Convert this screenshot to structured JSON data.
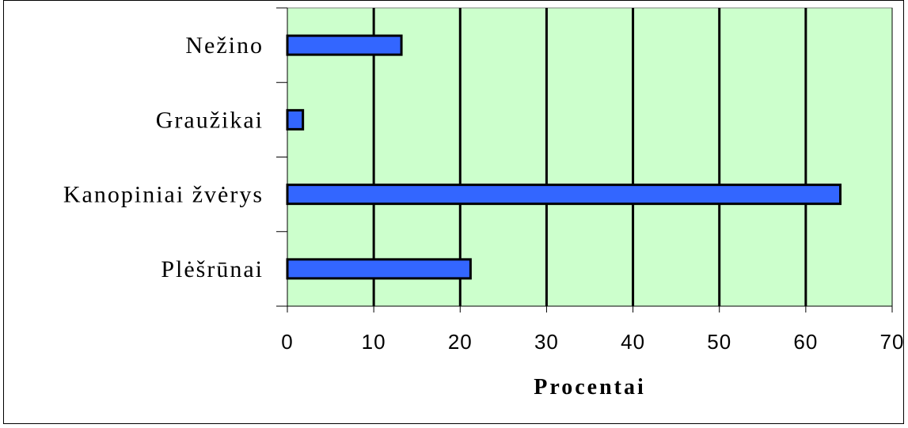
{
  "chart_data": {
    "type": "bar",
    "orientation": "horizontal",
    "categories": [
      "Nežino",
      "Graužikai",
      "Kanopiniai žvėrys",
      "Plėšrūnai"
    ],
    "values": [
      13.2,
      1.8,
      64.0,
      21.2
    ],
    "title": "",
    "xlabel": "Procentai",
    "ylabel": "",
    "xlim": [
      0,
      70
    ],
    "xticks": [
      "0",
      "10",
      "20",
      "30",
      "40",
      "50",
      "60",
      "70"
    ],
    "grid": "vertical",
    "legend": "none",
    "colors": {
      "plot_background": "#ccffcc",
      "bar_fill": "#3366ff",
      "bar_stroke": "#000000",
      "gridline": "#000000"
    }
  }
}
